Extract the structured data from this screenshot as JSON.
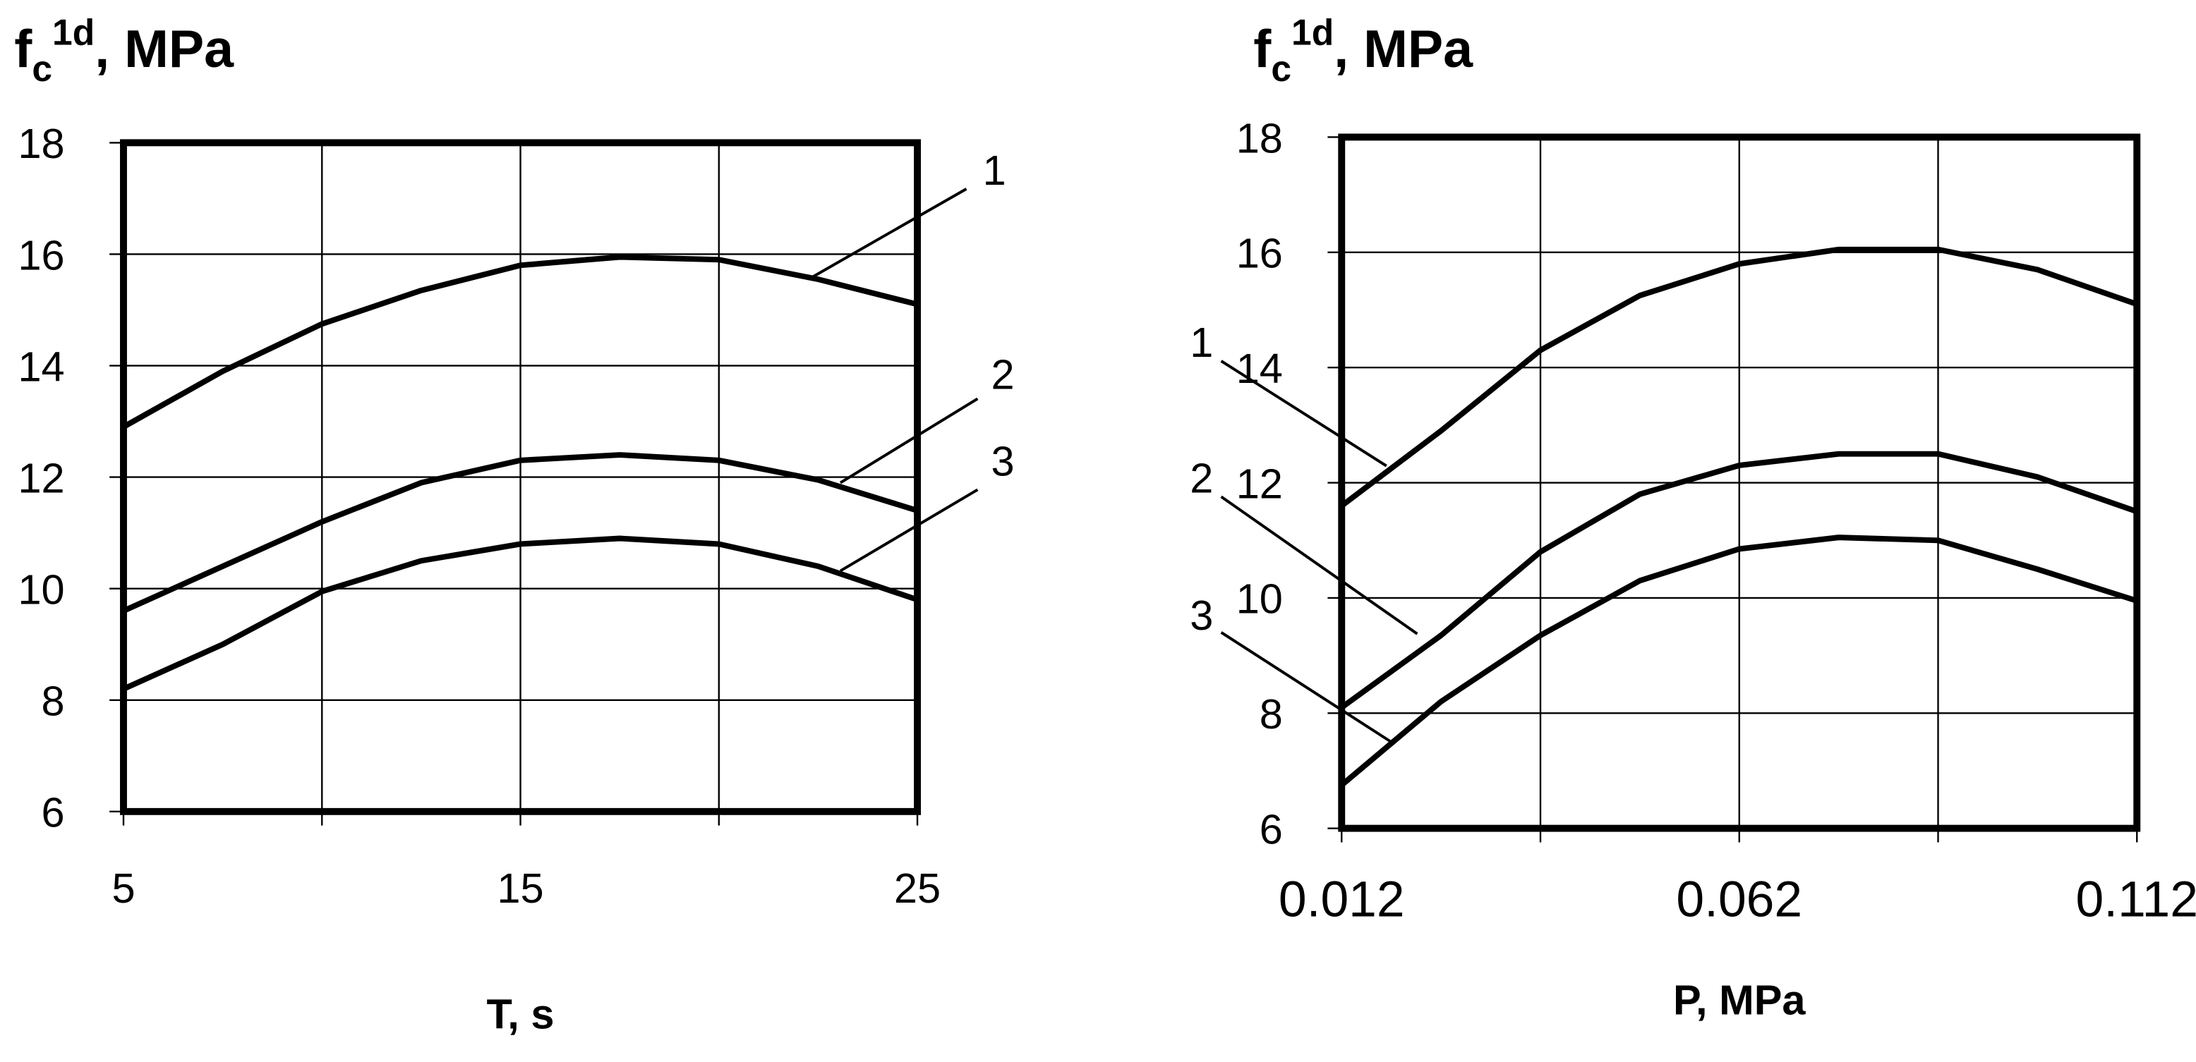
{
  "chart_data": [
    {
      "type": "line",
      "y_label": {
        "base": "f",
        "sub": "c",
        "sup": "1d",
        "unit": ", MPa"
      },
      "x_label": "T, s",
      "x": [
        5,
        7.5,
        10,
        12.5,
        15,
        17.5,
        20,
        22.5,
        25
      ],
      "series": [
        {
          "name": "1",
          "color": "#000000",
          "values": [
            12.9,
            13.9,
            14.75,
            15.35,
            15.8,
            15.95,
            15.9,
            15.55,
            15.1
          ]
        },
        {
          "name": "2",
          "color": "#000000",
          "values": [
            9.6,
            10.4,
            11.2,
            11.9,
            12.3,
            12.4,
            12.3,
            11.95,
            11.4
          ]
        },
        {
          "name": "3",
          "color": "#000000",
          "values": [
            8.2,
            9.0,
            9.95,
            10.5,
            10.8,
            10.9,
            10.8,
            10.4,
            9.8
          ]
        }
      ],
      "xlim": [
        5,
        25
      ],
      "ylim": [
        6,
        18
      ],
      "xticks": [
        5,
        15,
        25
      ],
      "xminor_ticks": [
        10,
        20
      ],
      "yticks": [
        6,
        8,
        10,
        12,
        14,
        16,
        18
      ],
      "grid": true
    },
    {
      "type": "line",
      "y_label": {
        "base": "f",
        "sub": "c",
        "sup": "1d",
        "unit": ", MPa"
      },
      "x_label": "P, MPa",
      "x": [
        0.012,
        0.0245,
        0.037,
        0.0495,
        0.062,
        0.0745,
        0.087,
        0.0995,
        0.112
      ],
      "series": [
        {
          "name": "1",
          "color": "#000000",
          "values": [
            11.6,
            12.9,
            14.3,
            15.25,
            15.8,
            16.05,
            16.05,
            15.7,
            15.1
          ]
        },
        {
          "name": "2",
          "color": "#000000",
          "values": [
            8.1,
            9.35,
            10.8,
            11.8,
            12.3,
            12.5,
            12.5,
            12.1,
            11.5
          ]
        },
        {
          "name": "3",
          "color": "#000000",
          "values": [
            6.75,
            8.2,
            9.35,
            10.3,
            10.85,
            11.05,
            11.0,
            10.5,
            9.95
          ]
        }
      ],
      "xlim": [
        0.012,
        0.112
      ],
      "ylim": [
        6,
        18
      ],
      "xticks": [
        0.012,
        0.062,
        0.112
      ],
      "xminor_ticks": [
        0.037,
        0.087
      ],
      "yticks": [
        6,
        8,
        10,
        12,
        14,
        16,
        18
      ],
      "grid": true
    }
  ]
}
